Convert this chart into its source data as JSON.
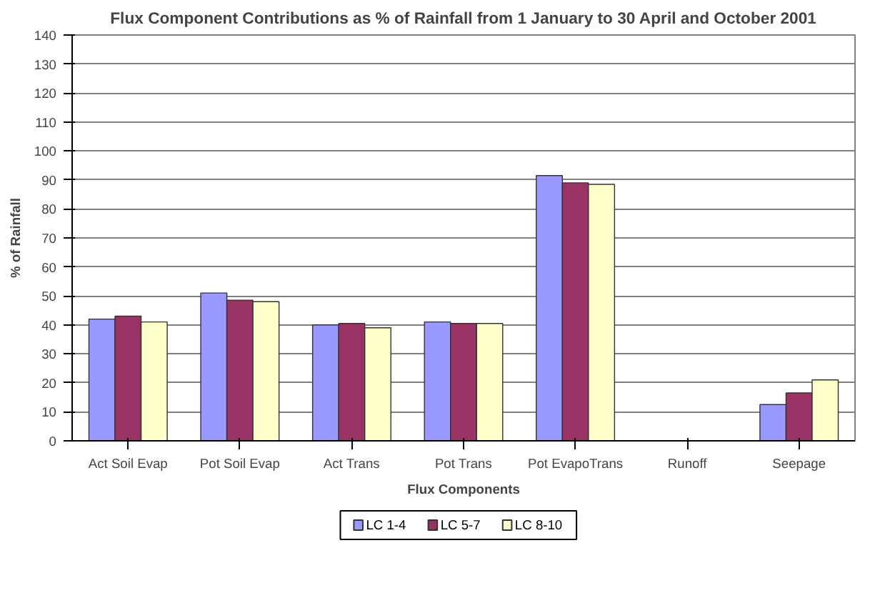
{
  "chart_data": {
    "type": "bar",
    "title": "Flux Component Contributions as % of Rainfall from 1 January to 30 April and October 2001",
    "xlabel": "Flux Components",
    "ylabel": "% of Rainfall",
    "categories": [
      "Act Soil Evap",
      "Pot Soil Evap",
      "Act Trans",
      "Pot Trans",
      "Pot EvapoTrans",
      "Runoff",
      "Seepage"
    ],
    "series": [
      {
        "name": "LC 1-4",
        "color": "#9999ff",
        "values": [
          42,
          51,
          40,
          41,
          91.5,
          0,
          12.5
        ]
      },
      {
        "name": "LC 5-7",
        "color": "#993366",
        "values": [
          43,
          48.5,
          40.5,
          40.5,
          89,
          0,
          16.5
        ]
      },
      {
        "name": "LC 8-10",
        "color": "#ffffcc",
        "values": [
          41,
          48,
          39,
          40.5,
          88.5,
          0,
          21
        ]
      }
    ],
    "ylim": [
      0,
      140
    ],
    "yticks": [
      0,
      10,
      20,
      30,
      40,
      50,
      60,
      70,
      80,
      90,
      100,
      110,
      120,
      130,
      140
    ],
    "grid": "y",
    "legend": "bottom"
  }
}
